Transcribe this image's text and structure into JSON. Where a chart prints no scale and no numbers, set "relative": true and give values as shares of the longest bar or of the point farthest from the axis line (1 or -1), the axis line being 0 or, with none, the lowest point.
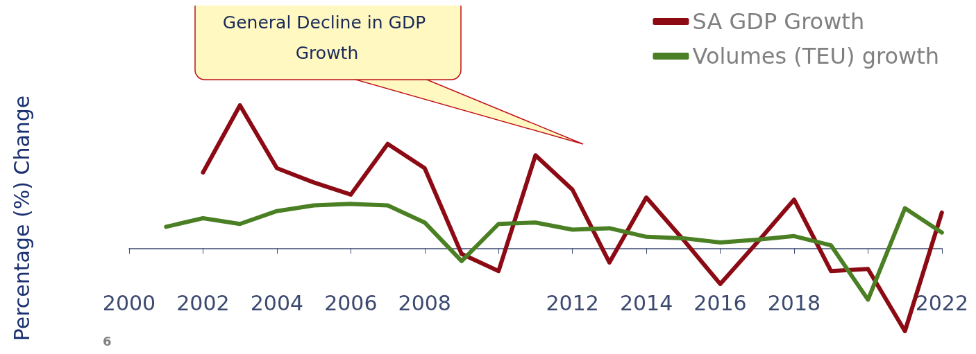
{
  "chart_data": {
    "type": "line",
    "relative": true,
    "ylabel": "Percentage (%) Change",
    "annotations": [
      "General Decline in GDP Growth",
      "6"
    ],
    "xlim": [
      2000,
      2022
    ],
    "xticks": [
      2000,
      2002,
      2004,
      2006,
      2008,
      {
        "value": 2010,
        "label": null
      },
      2012,
      2014,
      2016,
      2018,
      {
        "value": 2020,
        "label": null
      },
      2022
    ],
    "grid": false,
    "legend": "top right",
    "marker": "none",
    "line_style": "solid",
    "series": [
      {
        "name": "SA GDP Growth",
        "color": "#8b0a14",
        "x": [
          2002,
          2003,
          2004,
          2005,
          2006,
          2007,
          2008,
          2009,
          2010,
          2011,
          2012,
          2013,
          2014,
          2015,
          2016,
          2017,
          2018,
          2019,
          2020,
          2021,
          2022
        ],
        "values": [
          0.53,
          1.0,
          0.56,
          0.46,
          0.375,
          0.73,
          0.56,
          -0.04,
          -0.16,
          0.65,
          0.41,
          -0.1,
          0.355,
          0.06,
          -0.25,
          0.04,
          0.34,
          -0.16,
          -0.145,
          -0.58,
          0.25
        ]
      },
      {
        "name": "Volumes (TEU) growth",
        "color": "#4a7f23",
        "x": [
          2001,
          2002,
          2003,
          2004,
          2005,
          2006,
          2007,
          2008,
          2009,
          2010,
          2011,
          2012,
          2013,
          2014,
          2015,
          2016,
          2017,
          2018,
          2019,
          2020,
          2021,
          2022
        ],
        "values": [
          0.15,
          0.21,
          0.17,
          0.26,
          0.3,
          0.31,
          0.3,
          0.18,
          -0.09,
          0.17,
          0.18,
          0.13,
          0.14,
          0.08,
          0.07,
          0.04,
          0.06,
          0.085,
          0.02,
          -0.36,
          0.28,
          0.11
        ]
      }
    ]
  }
}
